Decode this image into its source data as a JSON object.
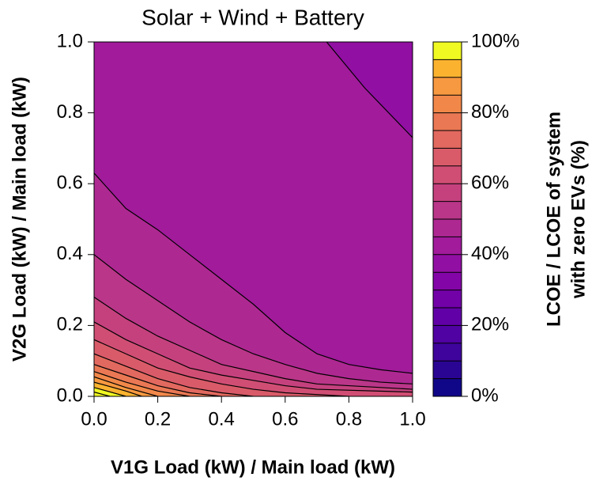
{
  "chart_data": {
    "type": "contour",
    "title": "Solar + Wind + Battery",
    "xlabel": "V1G Load (kW) / Main load (kW)",
    "ylabel": "V2G Load (kW) / Main load (kW)",
    "xlim": [
      0,
      1
    ],
    "ylim": [
      0,
      1
    ],
    "xticks": [
      {
        "value": 0,
        "label": "0.0"
      },
      0.2,
      0.4,
      0.6,
      0.8,
      {
        "value": 1,
        "label": "1.0"
      }
    ],
    "yticks": [
      {
        "value": 0,
        "label": "0.0"
      },
      0.2,
      0.4,
      0.6,
      0.8,
      {
        "value": 1,
        "label": "1.0"
      }
    ],
    "colorbar": {
      "label": [
        "LCOE / LCOE of system",
        "with zero EVs (%)"
      ],
      "lim": [
        0,
        100
      ],
      "ticks": [
        {
          "value": 0,
          "label": "0%"
        },
        {
          "value": 20,
          "label": "20%"
        },
        {
          "value": 40,
          "label": "40%"
        },
        {
          "value": 60,
          "label": "60%"
        },
        {
          "value": 80,
          "label": "80%"
        },
        {
          "value": 100,
          "label": "100%"
        }
      ],
      "levels": [
        0,
        5,
        10,
        15,
        20,
        25,
        30,
        35,
        40,
        45,
        50,
        55,
        60,
        65,
        70,
        75,
        80,
        85,
        90,
        95,
        100
      ],
      "colors": [
        "#100788",
        "#2a0593",
        "#3e049c",
        "#5002a2",
        "#6100a7",
        "#7201a8",
        "#8305a7",
        "#920fa3",
        "#a11b9b",
        "#ae2892",
        "#ba3689",
        "#c5417e",
        "#d04e74",
        "#d95b69",
        "#e2695f",
        "#ea7854",
        "#f1884a",
        "#f79940",
        "#fbb32f",
        "#f0f921"
      ]
    },
    "contours": [
      {
        "level": 40,
        "x": [
          0.73,
          0.85,
          1.0
        ],
        "y": [
          1.0,
          0.87,
          0.73
        ]
      },
      {
        "level": 45,
        "x": [
          0,
          0.1,
          0.2,
          0.3,
          0.4,
          0.5,
          0.6,
          0.7,
          0.8,
          0.9,
          1.0
        ],
        "y": [
          0.63,
          0.53,
          0.47,
          0.4,
          0.33,
          0.26,
          0.18,
          0.12,
          0.09,
          0.075,
          0.065
        ]
      },
      {
        "level": 50,
        "x": [
          0,
          0.1,
          0.2,
          0.3,
          0.4,
          0.5,
          0.6,
          0.7,
          0.8,
          0.9,
          1.0
        ],
        "y": [
          0.4,
          0.33,
          0.27,
          0.21,
          0.16,
          0.12,
          0.09,
          0.065,
          0.05,
          0.04,
          0.035
        ]
      },
      {
        "level": 55,
        "x": [
          0,
          0.1,
          0.2,
          0.3,
          0.4,
          0.5,
          0.6,
          0.7,
          0.8,
          1.0
        ],
        "y": [
          0.28,
          0.22,
          0.17,
          0.13,
          0.09,
          0.07,
          0.05,
          0.035,
          0.03,
          0.02
        ]
      },
      {
        "level": 60,
        "x": [
          0,
          0.1,
          0.2,
          0.3,
          0.4,
          0.5,
          0.6,
          0.7,
          1.0
        ],
        "y": [
          0.21,
          0.16,
          0.12,
          0.08,
          0.06,
          0.045,
          0.03,
          0.02,
          0.012
        ]
      },
      {
        "level": 65,
        "x": [
          0,
          0.1,
          0.2,
          0.3,
          0.4,
          0.5,
          0.6,
          0.8
        ],
        "y": [
          0.16,
          0.12,
          0.08,
          0.055,
          0.035,
          0.02,
          0.01,
          0
        ]
      },
      {
        "level": 70,
        "x": [
          0,
          0.1,
          0.2,
          0.3,
          0.4,
          0.5
        ],
        "y": [
          0.12,
          0.085,
          0.05,
          0.025,
          0.01,
          0
        ]
      },
      {
        "level": 75,
        "x": [
          0,
          0.1,
          0.2,
          0.3,
          0.4
        ],
        "y": [
          0.09,
          0.06,
          0.03,
          0.01,
          0
        ]
      },
      {
        "level": 80,
        "x": [
          0,
          0.1,
          0.2,
          0.3
        ],
        "y": [
          0.07,
          0.04,
          0.015,
          0
        ]
      },
      {
        "level": 85,
        "x": [
          0,
          0.1,
          0.2
        ],
        "y": [
          0.055,
          0.025,
          0
        ]
      },
      {
        "level": 90,
        "x": [
          0,
          0.1,
          0.15
        ],
        "y": [
          0.04,
          0.015,
          0
        ]
      },
      {
        "level": 95,
        "x": [
          0,
          0.1
        ],
        "y": [
          0.025,
          0
        ]
      },
      {
        "level": 100,
        "x": [
          0,
          0.05
        ],
        "y": [
          0.012,
          0
        ]
      }
    ]
  }
}
